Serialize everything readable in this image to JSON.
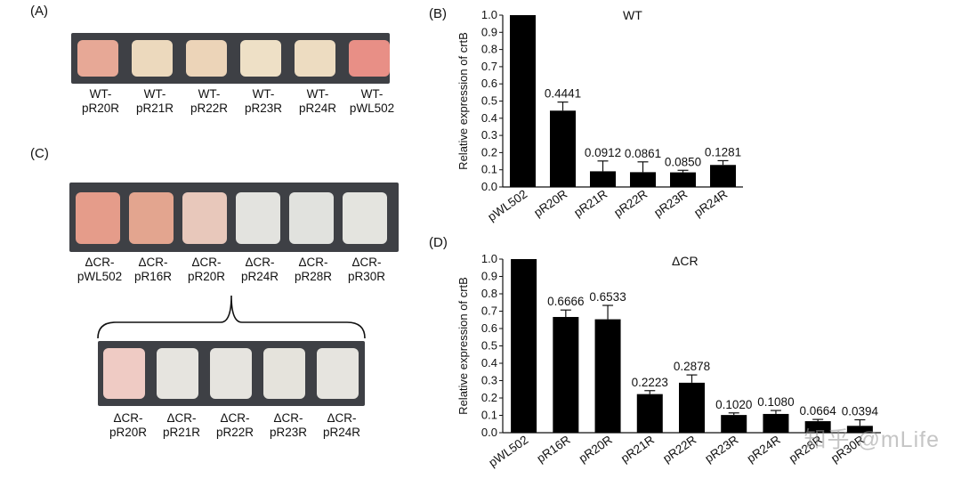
{
  "panel_a": {
    "label": "(A)",
    "strains": [
      {
        "line1": "WT-",
        "line2": "pR20R",
        "color": "#e7a896"
      },
      {
        "line1": "WT-",
        "line2": "pR21R",
        "color": "#ecd9bd"
      },
      {
        "line1": "WT-",
        "line2": "pR22R",
        "color": "#ecd4b8"
      },
      {
        "line1": "WT-",
        "line2": "pR23R",
        "color": "#eee0c6"
      },
      {
        "line1": "WT-",
        "line2": "pR24R",
        "color": "#eddcc1"
      },
      {
        "line1": "WT-",
        "line2": "pWL502",
        "color": "#e88f86"
      }
    ]
  },
  "panel_c": {
    "label": "(C)",
    "top_strains": [
      {
        "line1": "ΔCR-",
        "line2": "pWL502",
        "color": "#e59c8a"
      },
      {
        "line1": "ΔCR-",
        "line2": "pR16R",
        "color": "#e3a58f"
      },
      {
        "line1": "ΔCR-",
        "line2": "pR20R",
        "color": "#e8c8bb"
      },
      {
        "line1": "ΔCR-",
        "line2": "pR24R",
        "color": "#e3e3df"
      },
      {
        "line1": "ΔCR-",
        "line2": "pR28R",
        "color": "#e1e2de"
      },
      {
        "line1": "ΔCR-",
        "line2": "pR30R",
        "color": "#e4e4df"
      }
    ],
    "bottom_strains": [
      {
        "line1": "ΔCR-",
        "line2": "pR20R",
        "color": "#efcbc4"
      },
      {
        "line1": "ΔCR-",
        "line2": "pR21R",
        "color": "#e6e4df"
      },
      {
        "line1": "ΔCR-",
        "line2": "pR22R",
        "color": "#e6e4df"
      },
      {
        "line1": "ΔCR-",
        "line2": "pR23R",
        "color": "#e5e3dc"
      },
      {
        "line1": "ΔCR-",
        "line2": "pR24R",
        "color": "#e6e4df"
      }
    ]
  },
  "watermark": "知乎 @mLife",
  "chart_data": [
    {
      "panel": "(B)",
      "type": "bar",
      "title": "WT",
      "ylabel": "Relative expression of crtB",
      "ylim": [
        0,
        1.0
      ],
      "yticks": [
        "0.0",
        "0.1",
        "0.2",
        "0.3",
        "0.4",
        "0.5",
        "0.6",
        "0.7",
        "0.8",
        "0.9",
        "1.0"
      ],
      "categories": [
        "pWL502",
        "pR20R",
        "pR21R",
        "pR22R",
        "pR23R",
        "pR24R"
      ],
      "values": [
        1.0,
        0.4441,
        0.0912,
        0.0861,
        0.085,
        0.1281
      ],
      "errors": [
        0.0,
        0.05,
        0.06,
        0.06,
        0.012,
        0.025
      ],
      "data_labels": [
        "",
        "0.4441",
        "0.0912",
        "0.0861",
        "0.0850",
        "0.1281"
      ],
      "grid": false,
      "bar_color": "#000000"
    },
    {
      "panel": "(D)",
      "type": "bar",
      "title": "ΔCR",
      "ylabel": "Relative expression of crtB",
      "ylim": [
        0,
        1.0
      ],
      "yticks": [
        "0.0",
        "0.1",
        "0.2",
        "0.3",
        "0.4",
        "0.5",
        "0.6",
        "0.7",
        "0.8",
        "0.9",
        "1.0"
      ],
      "categories": [
        "pWL502",
        "pR16R",
        "pR20R",
        "pR21R",
        "pR22R",
        "pR23R",
        "pR24R",
        "pR28R",
        "pR30R"
      ],
      "values": [
        1.0,
        0.6666,
        0.6533,
        0.2223,
        0.2878,
        0.102,
        0.108,
        0.0664,
        0.0394
      ],
      "errors": [
        0.0,
        0.04,
        0.08,
        0.02,
        0.045,
        0.012,
        0.02,
        0.01,
        0.035
      ],
      "data_labels": [
        "",
        "0.6666",
        "0.6533",
        "0.2223",
        "0.2878",
        "0.1020",
        "0.1080",
        "0.0664",
        "0.0394"
      ],
      "grid": false,
      "bar_color": "#000000"
    }
  ]
}
